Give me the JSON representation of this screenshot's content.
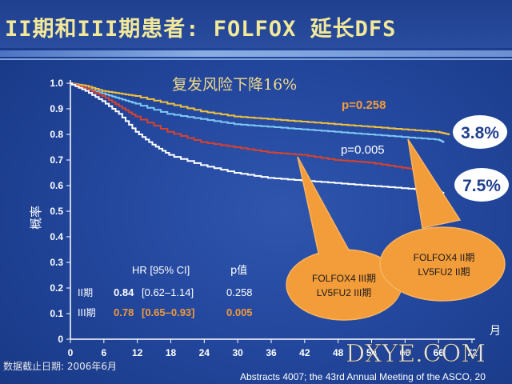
{
  "slide": {
    "title": "II期和III期患者: FOLFOX 延长DFS",
    "subtitle": "复发风险下降16%",
    "cutoff_note": "数据截止日期: 2006年6月",
    "source": "Abstracts 4007; the 43rd Annual Meeting of the ASCO, 20",
    "watermark": "DXYE.COM"
  },
  "chart_data": {
    "type": "line",
    "title": "",
    "xlabel": "月",
    "ylabel": "概率",
    "xlim": [
      0,
      72
    ],
    "ylim": [
      0,
      1.0
    ],
    "x_ticks": [
      "0",
      "6",
      "12",
      "18",
      "24",
      "30",
      "36",
      "42",
      "48",
      "54",
      "60",
      "66",
      "72"
    ],
    "y_ticks": [
      "0",
      "0.1",
      "0.2",
      "0.3",
      "0.4",
      "0.5",
      "0.6",
      "0.7",
      "0.8",
      "0.9",
      "1.0"
    ],
    "grid": false,
    "series": [
      {
        "name": "FOLFOX4 II期",
        "color": "#f2c13a",
        "points": [
          [
            0,
            1.0
          ],
          [
            3,
            0.99
          ],
          [
            6,
            0.97
          ],
          [
            9,
            0.96
          ],
          [
            12,
            0.95
          ],
          [
            18,
            0.92
          ],
          [
            24,
            0.89
          ],
          [
            30,
            0.87
          ],
          [
            36,
            0.86
          ],
          [
            42,
            0.85
          ],
          [
            48,
            0.84
          ],
          [
            54,
            0.83
          ],
          [
            60,
            0.82
          ],
          [
            66,
            0.81
          ],
          [
            68,
            0.8
          ]
        ]
      },
      {
        "name": "LV5FU2 II期",
        "color": "#7ec8f2",
        "points": [
          [
            0,
            1.0
          ],
          [
            3,
            0.98
          ],
          [
            6,
            0.96
          ],
          [
            9,
            0.94
          ],
          [
            12,
            0.92
          ],
          [
            18,
            0.88
          ],
          [
            24,
            0.86
          ],
          [
            30,
            0.84
          ],
          [
            36,
            0.83
          ],
          [
            42,
            0.82
          ],
          [
            48,
            0.81
          ],
          [
            54,
            0.8
          ],
          [
            60,
            0.79
          ],
          [
            66,
            0.78
          ],
          [
            67,
            0.77
          ]
        ]
      },
      {
        "name": "FOLFOX4 III期",
        "color": "#d8422a",
        "points": [
          [
            0,
            1.0
          ],
          [
            3,
            0.98
          ],
          [
            6,
            0.95
          ],
          [
            9,
            0.91
          ],
          [
            12,
            0.87
          ],
          [
            18,
            0.81
          ],
          [
            24,
            0.77
          ],
          [
            30,
            0.75
          ],
          [
            36,
            0.73
          ],
          [
            42,
            0.72
          ],
          [
            48,
            0.7
          ],
          [
            54,
            0.69
          ],
          [
            60,
            0.67
          ],
          [
            63,
            0.66
          ]
        ]
      },
      {
        "name": "LV5FU2 III期",
        "color": "#ffffff",
        "points": [
          [
            0,
            1.0
          ],
          [
            3,
            0.97
          ],
          [
            6,
            0.93
          ],
          [
            9,
            0.88
          ],
          [
            12,
            0.81
          ],
          [
            15,
            0.76
          ],
          [
            18,
            0.72
          ],
          [
            24,
            0.68
          ],
          [
            30,
            0.65
          ],
          [
            36,
            0.63
          ],
          [
            42,
            0.62
          ],
          [
            48,
            0.61
          ],
          [
            54,
            0.6
          ],
          [
            60,
            0.59
          ],
          [
            66,
            0.58
          ],
          [
            67,
            0.57
          ]
        ]
      }
    ],
    "annotations": {
      "p_ii": "p=0.258",
      "p_iii": "p=0.005",
      "delta_ii": "3.8%",
      "delta_iii": "7.5%"
    },
    "stats_table": {
      "headers": [
        "HR [95% CI]",
        "p值"
      ],
      "rows": [
        {
          "label": "II期",
          "hr": "0.84",
          "ci": "[0.62–1.14]",
          "p": "0.258",
          "color": "#ffffff"
        },
        {
          "label": "III期",
          "hr": "0.78",
          "ci": "[0.65–0.93]",
          "p": "0.005",
          "color": "#f09a3a"
        }
      ]
    },
    "callouts": [
      {
        "line1": "FOLFOX4 III期",
        "line2": "LV5FU2 III期"
      },
      {
        "line1": "FOLFOX4 II期",
        "line2": "LV5FU2 II期"
      }
    ]
  }
}
